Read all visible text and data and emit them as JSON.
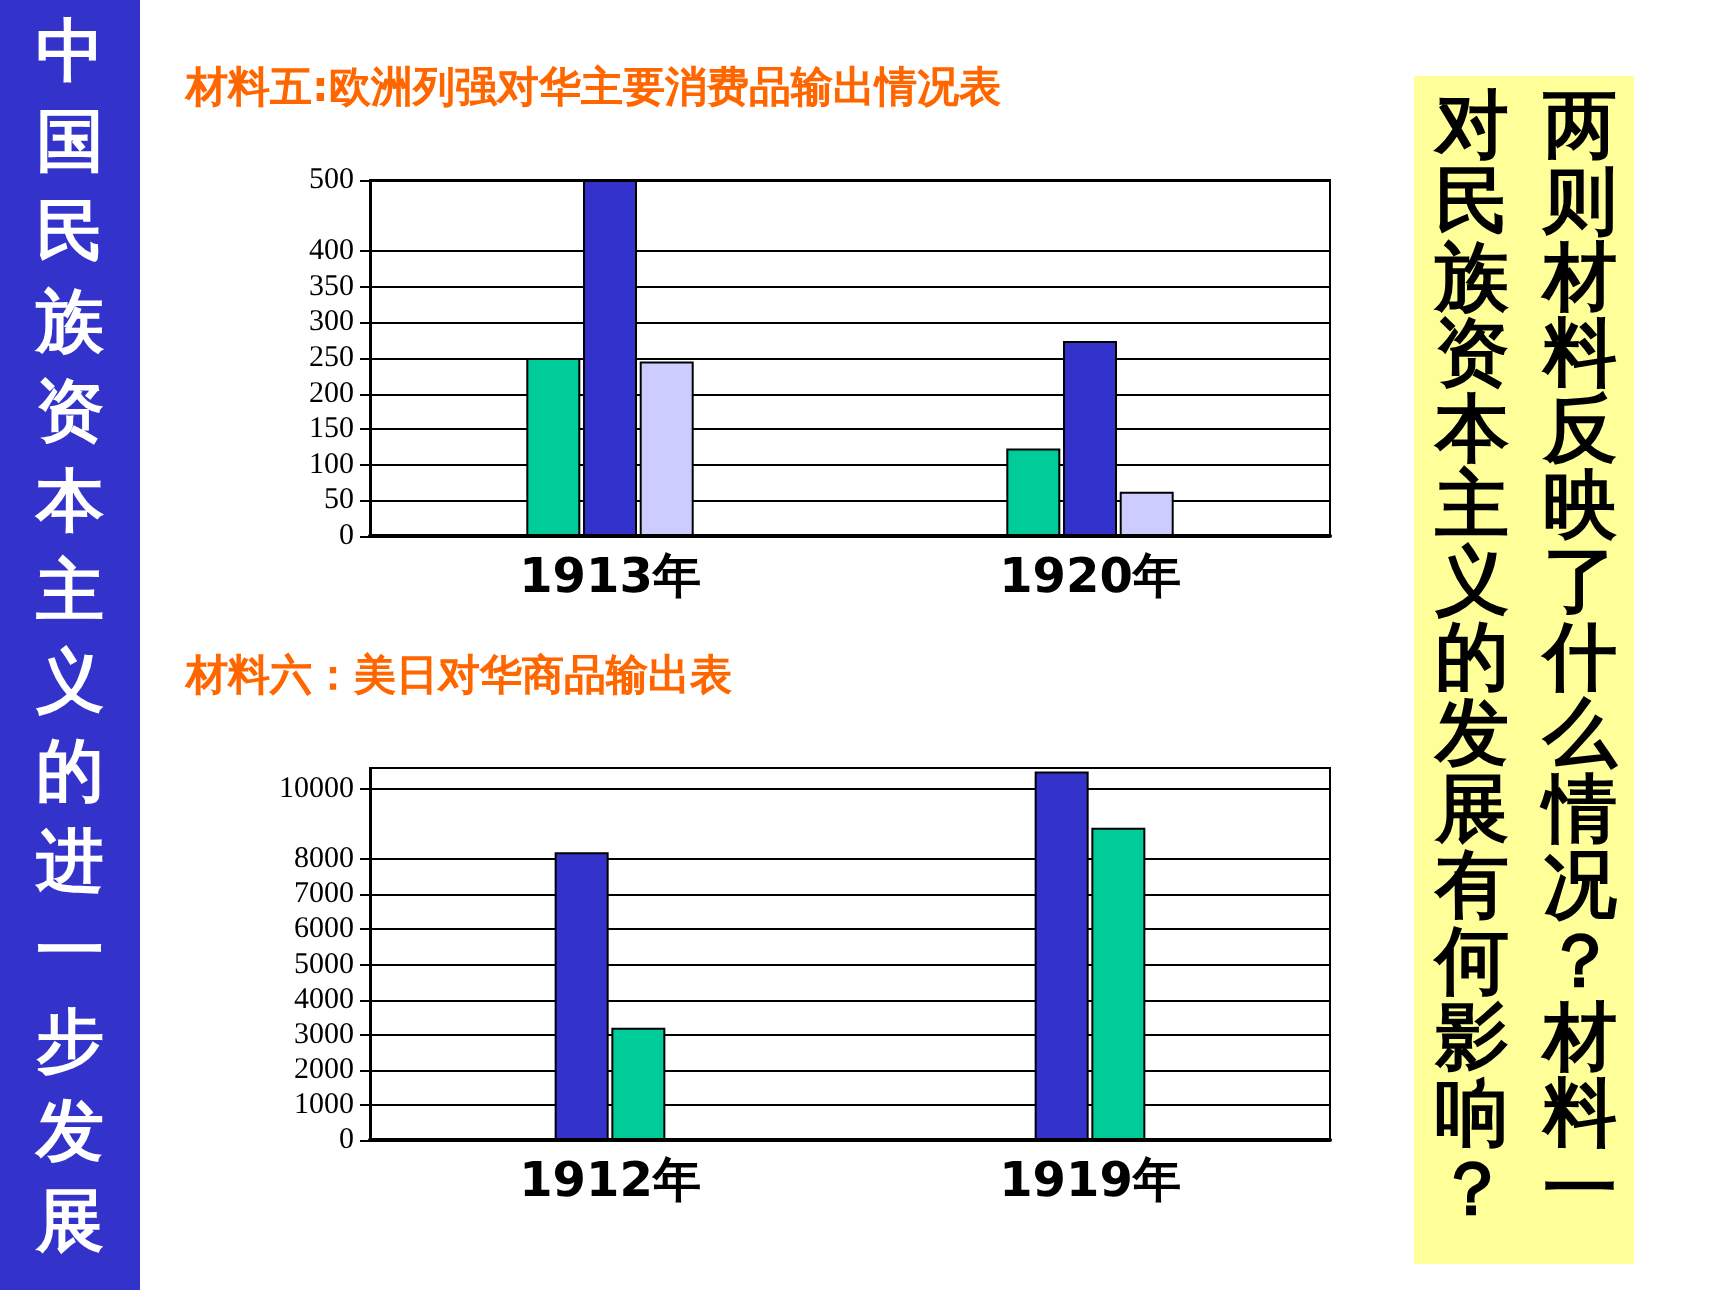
{
  "chart_data": [
    {
      "type": "bar",
      "title": "材料五:欧洲列强对华主要消费品输出情况表",
      "categories": [
        "1913年",
        "1920年"
      ],
      "series": [
        {
          "color": "#00cc99",
          "values": [
            250,
            123
          ]
        },
        {
          "color": "#3333cc",
          "values": [
            500,
            274
          ]
        },
        {
          "color": "#ccccff",
          "values": [
            245,
            62
          ]
        }
      ],
      "ylim": [
        0,
        500
      ],
      "yticks": [
        0,
        50,
        100,
        150,
        200,
        250,
        300,
        350,
        400,
        500
      ],
      "grid": "y"
    },
    {
      "type": "bar",
      "title": "材料六：美日对华商品输出表",
      "categories": [
        "1912年",
        "1919年"
      ],
      "series": [
        {
          "color": "#3333cc",
          "values": [
            8200,
            10500
          ]
        },
        {
          "color": "#00cc99",
          "values": [
            3200,
            8900
          ]
        }
      ],
      "ylim": [
        0,
        10600
      ],
      "yticks": [
        0,
        1000,
        2000,
        3000,
        4000,
        5000,
        6000,
        7000,
        8000,
        10000
      ],
      "grid": "y"
    },
    {
      "type": "other",
      "title": "中国民族资本主义的进一步发展",
      "annotations": [
        "两则材料反映了什么情况？材料一对民族资本主义的发展有何影响？"
      ]
    }
  ]
}
